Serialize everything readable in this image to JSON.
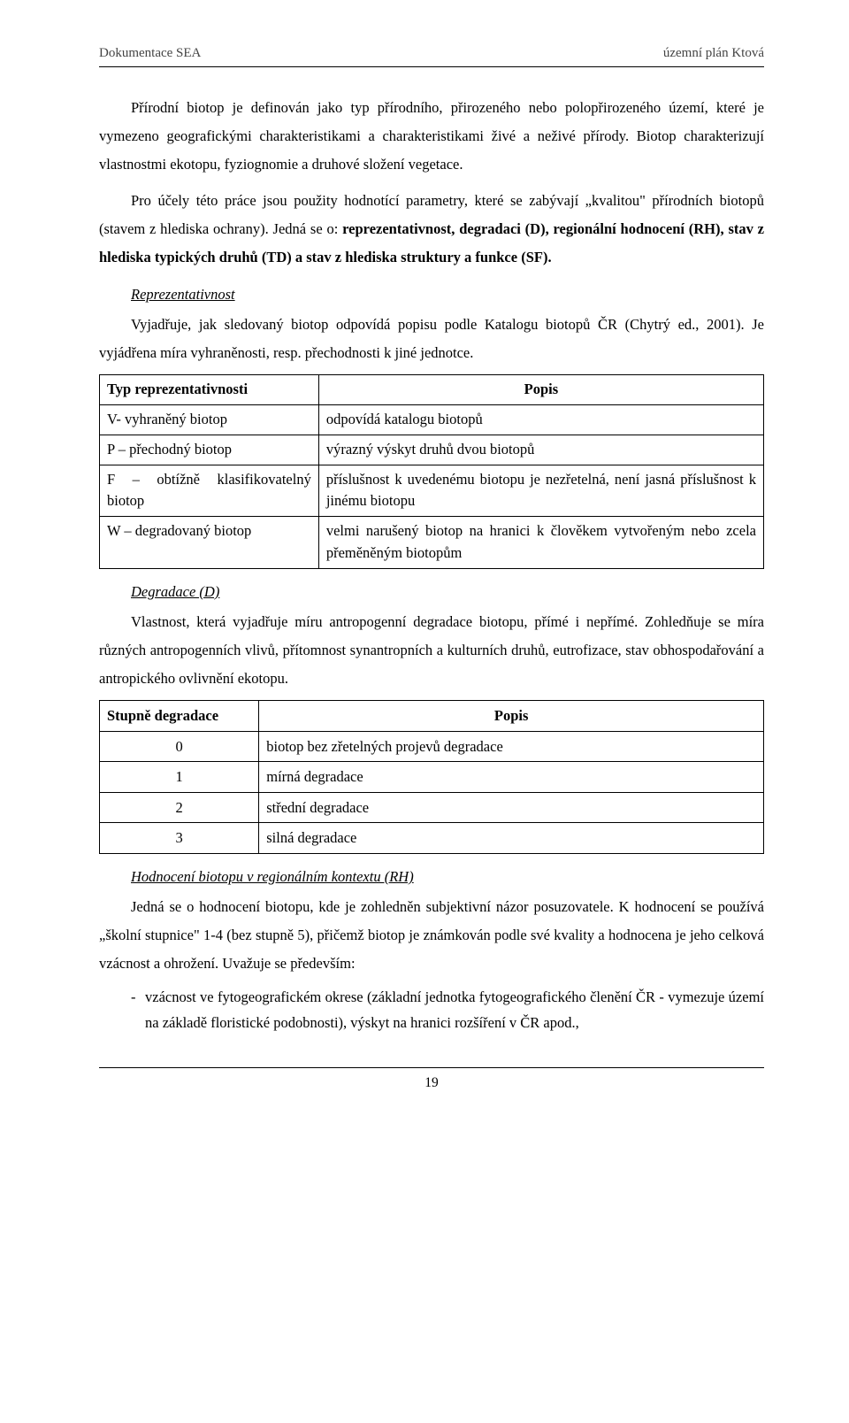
{
  "header": {
    "left": "Dokumentace SEA",
    "right": "územní plán Ktová"
  },
  "para1": "Přírodní biotop je definován jako typ přírodního, přirozeného nebo polopřirozeného území, které je vymezeno geografickými charakteristikami a charakteristikami živé a neživé přírody. Biotop charakterizují vlastnostmi ekotopu, fyziognomie a druhové složení vegetace.",
  "para2_pre": "Pro účely této práce jsou použity hodnotící parametry, které se zabývají „kvalitou\" přírodních biotopů (stavem z hlediska ochrany). Jedná se o: ",
  "para2_bold": "reprezentativnost, degradaci (D), regionální hodnocení (RH), stav z hlediska typických druhů (TD) a stav z hlediska struktury a funkce (SF).",
  "sections": {
    "reprez": {
      "label": "Reprezentativnost",
      "text": "Vyjadřuje, jak sledovaný biotop odpovídá popisu podle Katalogu biotopů ČR (Chytrý ed., 2001). Je vyjádřena míra vyhraněnosti, resp. přechodnosti k jiné jednotce."
    },
    "degradace": {
      "label": "Degradace (D)",
      "text": "Vlastnost, která vyjadřuje míru antropogenní degradace biotopu, přímé i nepřímé. Zohledňuje se míra různých antropogenních vlivů, přítomnost synantropních a kulturních druhů, eutrofizace, stav obhospodařování a antropického ovlivnění ekotopu."
    },
    "rh": {
      "label": "Hodnocení biotopu v regionálním kontextu (RH)",
      "text": "Jedná se o hodnocení biotopu, kde je zohledněn subjektivní názor posuzovatele. K hodnocení se používá „školní stupnice\" 1-4 (bez stupně 5), přičemž biotop je známkován podle své kvality a hodnocena je jeho celková vzácnost a ohrožení. Uvažuje se především:"
    }
  },
  "table1": {
    "headers": [
      "Typ reprezentativnosti",
      "Popis"
    ],
    "rows": [
      [
        "V- vyhraněný biotop",
        "odpovídá katalogu biotopů"
      ],
      [
        "P – přechodný biotop",
        "výrazný výskyt druhů dvou biotopů"
      ],
      [
        "F – obtížně klasifikovatelný biotop",
        "příslušnost k uvedenému biotopu je nezřetelná, není jasná příslušnost k jinému biotopu"
      ],
      [
        "W – degradovaný biotop",
        "velmi narušený biotop na hranici k člověkem vytvořeným nebo zcela přeměněným biotopům"
      ]
    ]
  },
  "table2": {
    "headers": [
      "Stupně degradace",
      "Popis"
    ],
    "rows": [
      [
        "0",
        "biotop bez zřetelných projevů degradace"
      ],
      [
        "1",
        "mírná degradace"
      ],
      [
        "2",
        "střední degradace"
      ],
      [
        "3",
        "silná degradace"
      ]
    ]
  },
  "bullet1": "vzácnost ve fytogeografickém okrese (základní jednotka fytogeografického členění ČR - vymezuje území na základě floristické podobnosti), výskyt na hranici rozšíření v ČR apod.,",
  "page_number": "19"
}
